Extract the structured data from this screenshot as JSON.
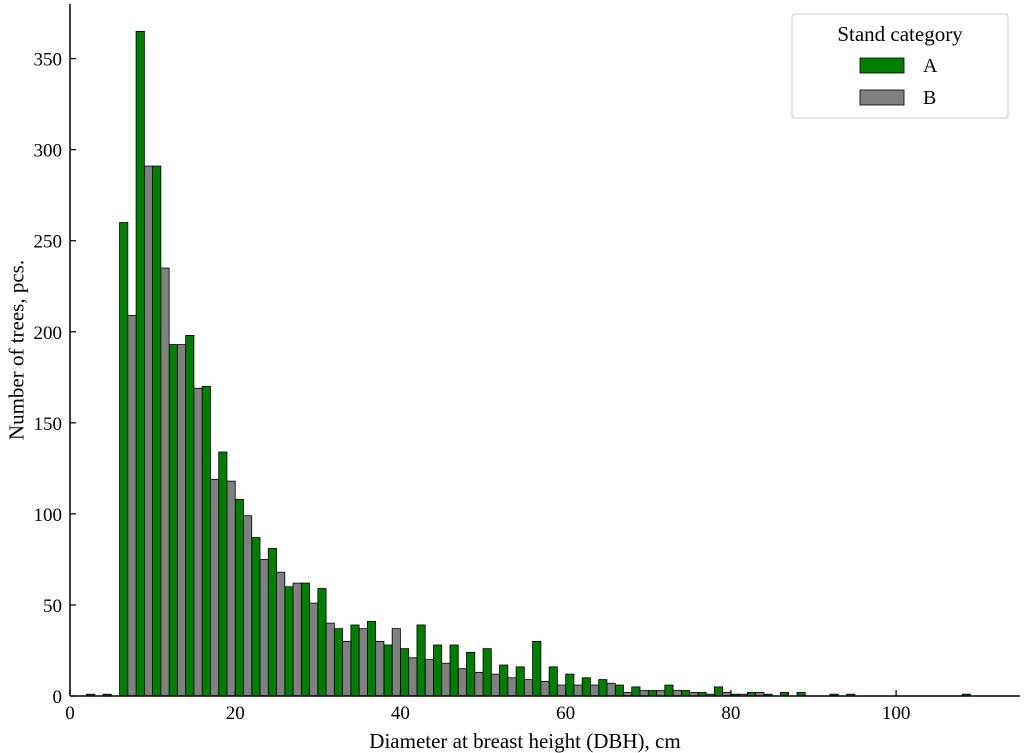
{
  "chart_data": {
    "type": "bar",
    "xlabel": "Diameter at breast height (DBH), cm",
    "ylabel": "Number of trees, pcs.",
    "xlim": [
      0,
      115
    ],
    "ylim": [
      0,
      380
    ],
    "xticks": [
      0,
      20,
      40,
      60,
      80,
      100
    ],
    "yticks": [
      0,
      50,
      100,
      150,
      200,
      250,
      300,
      350
    ],
    "bin_width": 2,
    "grid": false,
    "legend": {
      "title": "Stand category",
      "position": "top-right"
    },
    "series": [
      {
        "name": "A",
        "color": "#008000",
        "points": [
          [
            3,
            1
          ],
          [
            5,
            1
          ],
          [
            7,
            260
          ],
          [
            9,
            365
          ],
          [
            11,
            291
          ],
          [
            13,
            193
          ],
          [
            15,
            198
          ],
          [
            17,
            170
          ],
          [
            19,
            134
          ],
          [
            21,
            108
          ],
          [
            23,
            87
          ],
          [
            25,
            81
          ],
          [
            27,
            60
          ],
          [
            29,
            62
          ],
          [
            31,
            59
          ],
          [
            33,
            37
          ],
          [
            35,
            39
          ],
          [
            37,
            41
          ],
          [
            39,
            28
          ],
          [
            41,
            26
          ],
          [
            43,
            39
          ],
          [
            45,
            28
          ],
          [
            47,
            28
          ],
          [
            49,
            24
          ],
          [
            51,
            26
          ],
          [
            53,
            17
          ],
          [
            55,
            16
          ],
          [
            57,
            30
          ],
          [
            59,
            16
          ],
          [
            61,
            12
          ],
          [
            63,
            10
          ],
          [
            65,
            9
          ],
          [
            67,
            6
          ],
          [
            69,
            5
          ],
          [
            71,
            3
          ],
          [
            73,
            6
          ],
          [
            75,
            3
          ],
          [
            77,
            2
          ],
          [
            79,
            5
          ],
          [
            81,
            1
          ],
          [
            83,
            2
          ],
          [
            85,
            1
          ],
          [
            87,
            2
          ],
          [
            89,
            2
          ],
          [
            93,
            1
          ],
          [
            95,
            1
          ],
          [
            109,
            1
          ]
        ]
      },
      {
        "name": "B",
        "color": "#808080",
        "points": [
          [
            7,
            209
          ],
          [
            9,
            291
          ],
          [
            11,
            235
          ],
          [
            13,
            193
          ],
          [
            15,
            169
          ],
          [
            17,
            119
          ],
          [
            19,
            118
          ],
          [
            21,
            99
          ],
          [
            23,
            75
          ],
          [
            25,
            68
          ],
          [
            27,
            62
          ],
          [
            29,
            51
          ],
          [
            31,
            40
          ],
          [
            33,
            30
          ],
          [
            35,
            37
          ],
          [
            37,
            30
          ],
          [
            39,
            37
          ],
          [
            41,
            21
          ],
          [
            43,
            20
          ],
          [
            45,
            18
          ],
          [
            47,
            15
          ],
          [
            49,
            13
          ],
          [
            51,
            12
          ],
          [
            53,
            10
          ],
          [
            55,
            9
          ],
          [
            57,
            8
          ],
          [
            59,
            6
          ],
          [
            61,
            6
          ],
          [
            63,
            6
          ],
          [
            65,
            7
          ],
          [
            67,
            2
          ],
          [
            69,
            3
          ],
          [
            71,
            3
          ],
          [
            73,
            3
          ],
          [
            75,
            2
          ],
          [
            77,
            1
          ],
          [
            79,
            2
          ],
          [
            81,
            1
          ],
          [
            83,
            2
          ]
        ]
      }
    ]
  }
}
